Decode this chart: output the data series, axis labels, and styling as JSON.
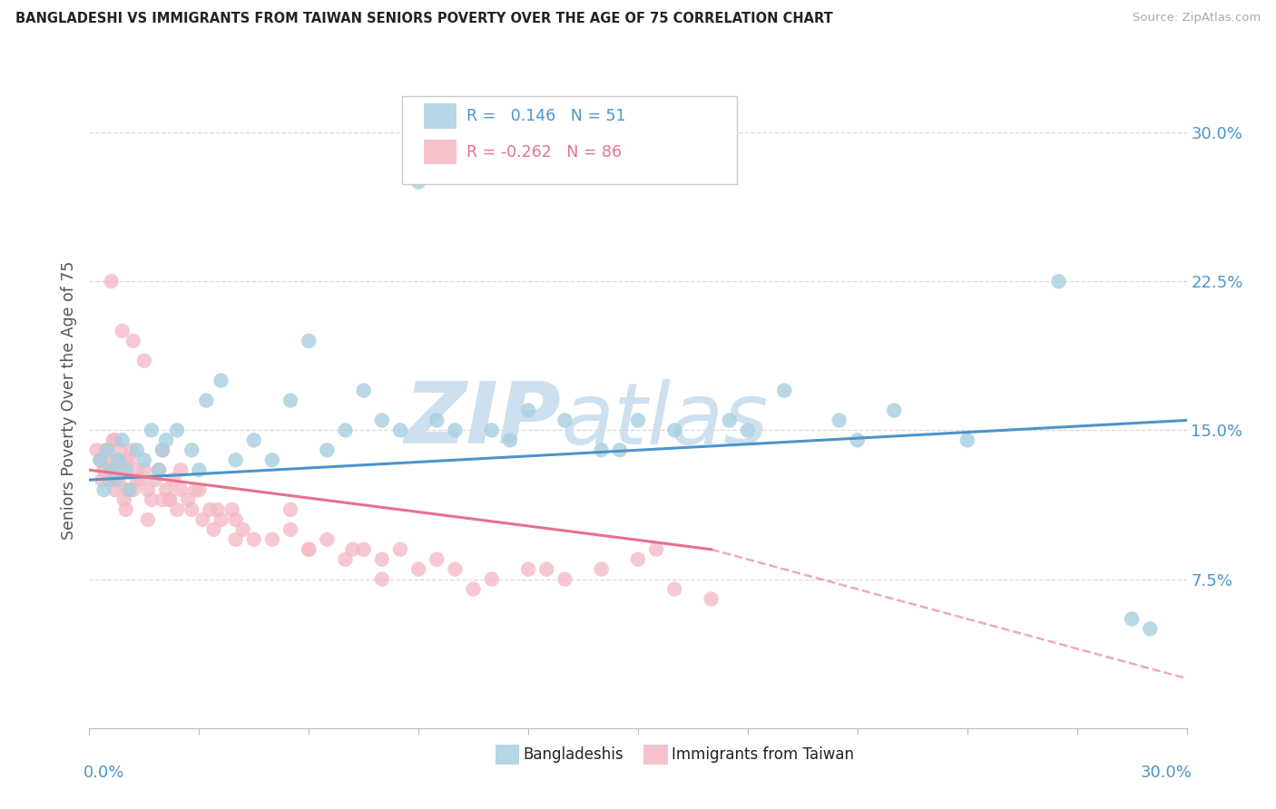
{
  "title": "BANGLADESHI VS IMMIGRANTS FROM TAIWAN SENIORS POVERTY OVER THE AGE OF 75 CORRELATION CHART",
  "source": "Source: ZipAtlas.com",
  "ylabel": "Seniors Poverty Over the Age of 75",
  "y_tick_labels": [
    "7.5%",
    "15.0%",
    "22.5%",
    "30.0%"
  ],
  "y_tick_values": [
    7.5,
    15.0,
    22.5,
    30.0
  ],
  "xlim": [
    0,
    30
  ],
  "ylim": [
    0,
    33
  ],
  "blue_color": "#a8cfe0",
  "pink_color": "#f4b8c4",
  "blue_line_color": "#4d94c9",
  "pink_line_color": "#e8708a",
  "watermark_zip_color": "#cde0ef",
  "watermark_atlas_color": "#cde0ef",
  "background_color": "#ffffff",
  "grid_color": "#d8d8d8",
  "blue_trend_x0": 0,
  "blue_trend_y0": 12.5,
  "blue_trend_x1": 30,
  "blue_trend_y1": 15.5,
  "pink_trend_x0": 0,
  "pink_trend_y0": 13.0,
  "pink_trend_solid_x1": 17,
  "pink_trend_solid_y1": 9.0,
  "pink_trend_dash_x1": 30,
  "pink_trend_dash_y1": 2.5,
  "blue_x": [
    0.3,
    0.4,
    0.5,
    0.6,
    0.7,
    0.8,
    0.9,
    1.0,
    1.1,
    1.3,
    1.5,
    1.7,
    1.9,
    2.1,
    2.4,
    2.8,
    3.2,
    3.6,
    4.5,
    5.0,
    6.0,
    7.0,
    8.0,
    9.0,
    10.0,
    11.5,
    13.0,
    14.5,
    16.0,
    17.5,
    19.0,
    20.5,
    22.0,
    24.0,
    26.5,
    28.5,
    5.5,
    7.5,
    9.5,
    12.0,
    15.0,
    18.0,
    21.0,
    4.0,
    6.5,
    8.5,
    14.0,
    3.0,
    2.0,
    11.0,
    29.0
  ],
  "blue_y": [
    13.5,
    12.0,
    14.0,
    13.0,
    12.5,
    13.5,
    14.5,
    13.0,
    12.0,
    14.0,
    13.5,
    15.0,
    13.0,
    14.5,
    15.0,
    14.0,
    16.5,
    17.5,
    14.5,
    13.5,
    19.5,
    15.0,
    15.5,
    27.5,
    15.0,
    14.5,
    15.5,
    14.0,
    15.0,
    15.5,
    17.0,
    15.5,
    16.0,
    14.5,
    22.5,
    5.5,
    16.5,
    17.0,
    15.5,
    16.0,
    15.5,
    15.0,
    14.5,
    13.5,
    14.0,
    15.0,
    14.0,
    13.0,
    14.0,
    15.0,
    5.0
  ],
  "pink_x": [
    0.2,
    0.3,
    0.35,
    0.4,
    0.45,
    0.5,
    0.55,
    0.6,
    0.65,
    0.7,
    0.75,
    0.8,
    0.85,
    0.9,
    0.95,
    1.0,
    1.05,
    1.1,
    1.15,
    1.2,
    1.3,
    1.4,
    1.5,
    1.6,
    1.7,
    1.8,
    1.9,
    2.0,
    2.1,
    2.2,
    2.3,
    2.4,
    2.5,
    2.7,
    2.9,
    3.1,
    3.3,
    3.6,
    3.9,
    4.2,
    4.5,
    5.0,
    5.5,
    6.0,
    6.5,
    7.0,
    7.5,
    8.0,
    8.5,
    9.0,
    10.0,
    11.0,
    12.0,
    13.0,
    14.0,
    15.0,
    16.0,
    17.0,
    0.6,
    0.9,
    1.2,
    1.5,
    2.0,
    2.5,
    3.0,
    3.5,
    4.0,
    5.5,
    7.2,
    9.5,
    12.5,
    15.5,
    0.4,
    0.7,
    1.0,
    1.3,
    1.6,
    2.2,
    2.8,
    3.4,
    4.0,
    6.0,
    8.0,
    10.5
  ],
  "pink_y": [
    14.0,
    13.5,
    12.5,
    13.0,
    14.0,
    13.5,
    12.5,
    13.0,
    14.5,
    12.0,
    13.5,
    12.5,
    14.0,
    13.0,
    11.5,
    13.5,
    12.0,
    13.5,
    14.0,
    12.0,
    13.0,
    12.5,
    13.0,
    12.0,
    11.5,
    12.5,
    13.0,
    11.5,
    12.0,
    11.5,
    12.5,
    11.0,
    12.0,
    11.5,
    12.0,
    10.5,
    11.0,
    10.5,
    11.0,
    10.0,
    9.5,
    9.5,
    10.0,
    9.0,
    9.5,
    8.5,
    9.0,
    8.5,
    9.0,
    8.0,
    8.0,
    7.5,
    8.0,
    7.5,
    8.0,
    8.5,
    7.0,
    6.5,
    22.5,
    20.0,
    19.5,
    18.5,
    14.0,
    13.0,
    12.0,
    11.0,
    10.5,
    11.0,
    9.0,
    8.5,
    8.0,
    9.0,
    13.0,
    14.5,
    11.0,
    12.5,
    10.5,
    11.5,
    11.0,
    10.0,
    9.5,
    9.0,
    7.5,
    7.0
  ]
}
